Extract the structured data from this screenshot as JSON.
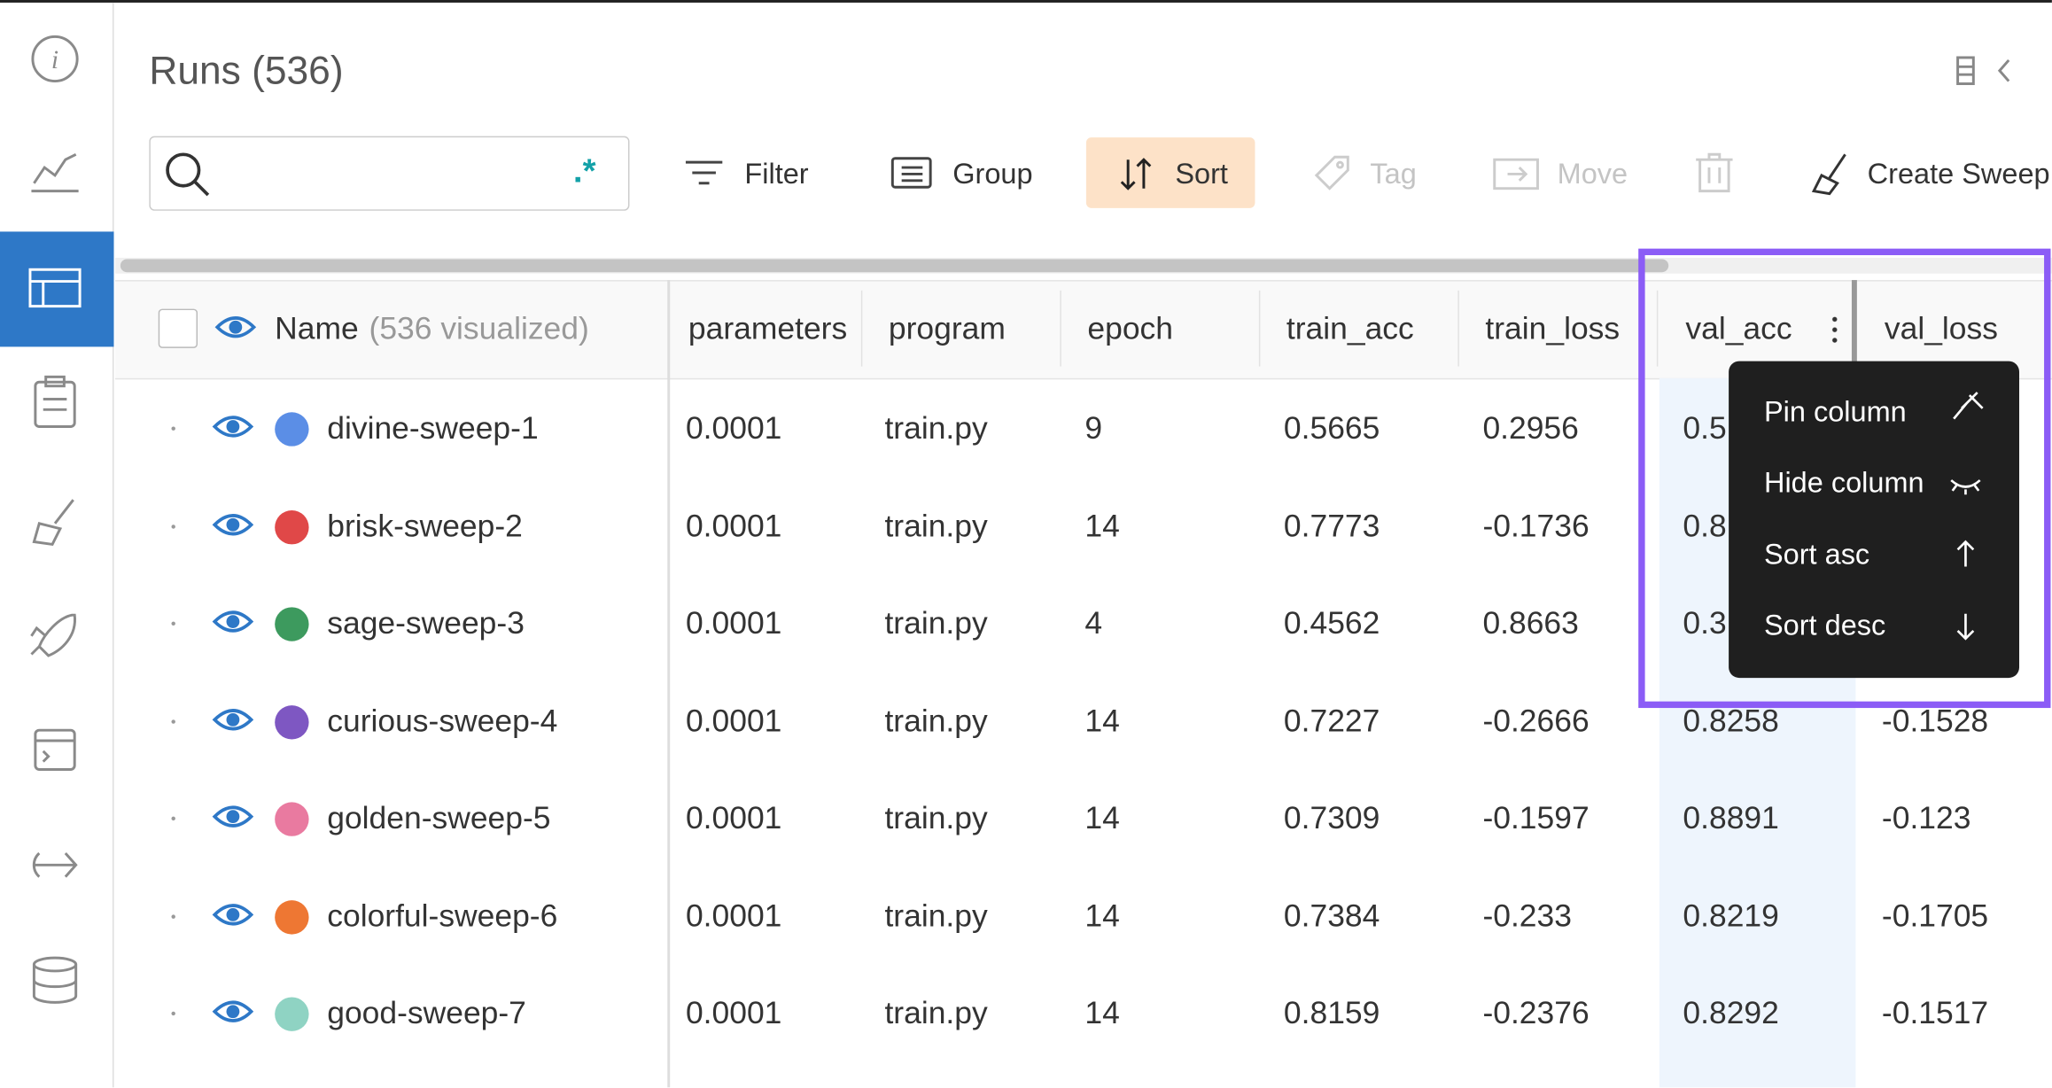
{
  "header": {
    "title": "Runs (536)"
  },
  "search": {
    "regex_icon": ".*"
  },
  "toolbar": {
    "buttons": [
      {
        "label": "Filter",
        "enabled": true,
        "active": false
      },
      {
        "label": "Group",
        "enabled": true,
        "active": false
      },
      {
        "label": "Sort",
        "enabled": true,
        "active": true
      },
      {
        "label": "Tag",
        "enabled": false,
        "active": false
      },
      {
        "label": "Move",
        "enabled": false,
        "active": false
      },
      {
        "label": "Create Sweep",
        "enabled": true,
        "active": false
      }
    ]
  },
  "table": {
    "name_header": "Name",
    "visualized": "(536 visualized)",
    "columns": [
      "parameters",
      "program",
      "epoch",
      "train_acc",
      "train_loss",
      "val_acc",
      "val_loss"
    ],
    "rows": [
      {
        "name": "divine-sweep-1",
        "color": "#5b8ee6",
        "cells": [
          "0.0001",
          "train.py",
          "9",
          "0.5665",
          "0.2956",
          "0.5",
          null
        ]
      },
      {
        "name": "brisk-sweep-2",
        "color": "#e04848",
        "cells": [
          "0.0001",
          "train.py",
          "14",
          "0.7773",
          "-0.1736",
          "0.8",
          null
        ]
      },
      {
        "name": "sage-sweep-3",
        "color": "#3d9a5e",
        "cells": [
          "0.0001",
          "train.py",
          "4",
          "0.4562",
          "0.8663",
          "0.3",
          null
        ]
      },
      {
        "name": "curious-sweep-4",
        "color": "#7e57c2",
        "cells": [
          "0.0001",
          "train.py",
          "14",
          "0.7227",
          "-0.2666",
          "0.8258",
          "-0.1528"
        ]
      },
      {
        "name": "golden-sweep-5",
        "color": "#e97aa0",
        "cells": [
          "0.0001",
          "train.py",
          "14",
          "0.7309",
          "-0.1597",
          "0.8891",
          "-0.123"
        ]
      },
      {
        "name": "colorful-sweep-6",
        "color": "#ee7733",
        "cells": [
          "0.0001",
          "train.py",
          "14",
          "0.7384",
          "-0.233",
          "0.8219",
          "-0.1705"
        ]
      },
      {
        "name": "good-sweep-7",
        "color": "#8fd3c3",
        "cells": [
          "0.0001",
          "train.py",
          "14",
          "0.8159",
          "-0.2376",
          "0.8292",
          "-0.1517"
        ]
      }
    ]
  },
  "column_menu": {
    "items": [
      "Pin column",
      "Hide column",
      "Sort asc",
      "Sort desc"
    ]
  }
}
